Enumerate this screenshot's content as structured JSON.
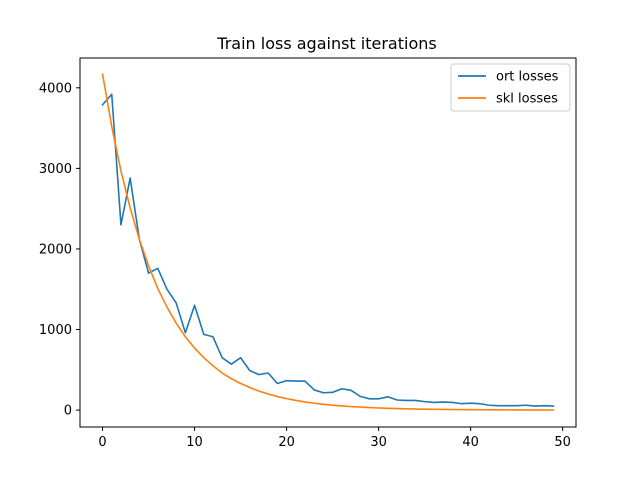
{
  "chart_data": {
    "type": "line",
    "title": "Train loss against iterations",
    "xlabel": "",
    "ylabel": "",
    "xlim": [
      -2.45,
      51.45
    ],
    "ylim": [
      -210,
      4370
    ],
    "xticks": [
      0,
      10,
      20,
      30,
      40,
      50
    ],
    "yticks": [
      0,
      1000,
      2000,
      3000,
      4000
    ],
    "grid": false,
    "legend_position": "top-right",
    "x": [
      0,
      1,
      2,
      3,
      4,
      5,
      6,
      7,
      8,
      9,
      10,
      11,
      12,
      13,
      14,
      15,
      16,
      17,
      18,
      19,
      20,
      21,
      22,
      23,
      24,
      25,
      26,
      27,
      28,
      29,
      30,
      31,
      32,
      33,
      34,
      35,
      36,
      37,
      38,
      39,
      40,
      41,
      42,
      43,
      44,
      45,
      46,
      47,
      48,
      49
    ],
    "series": [
      {
        "name": "ort losses",
        "color": "#1f77b4",
        "values": [
          3790,
          3920,
          2300,
          2880,
          2120,
          1700,
          1760,
          1500,
          1330,
          960,
          1300,
          940,
          910,
          650,
          570,
          650,
          490,
          440,
          460,
          330,
          365,
          360,
          360,
          250,
          215,
          220,
          265,
          245,
          170,
          140,
          140,
          165,
          125,
          120,
          120,
          105,
          95,
          100,
          95,
          80,
          85,
          80,
          60,
          55,
          55,
          55,
          60,
          50,
          55,
          50
        ]
      },
      {
        "name": "skl losses",
        "color": "#ff7f0e",
        "values": [
          4170,
          3520,
          2970,
          2510,
          2120,
          1790,
          1510,
          1280,
          1080,
          910,
          770,
          650,
          550,
          460,
          390,
          330,
          280,
          235,
          200,
          168,
          142,
          120,
          101,
          85,
          72,
          61,
          51,
          43,
          37,
          31,
          26,
          22,
          19,
          16,
          13,
          11,
          9.5,
          8,
          6.8,
          5.7,
          4.8,
          4.1,
          3.4,
          2.9,
          2.5,
          2.1,
          1.8,
          1.5,
          1.2,
          1
        ]
      }
    ]
  }
}
